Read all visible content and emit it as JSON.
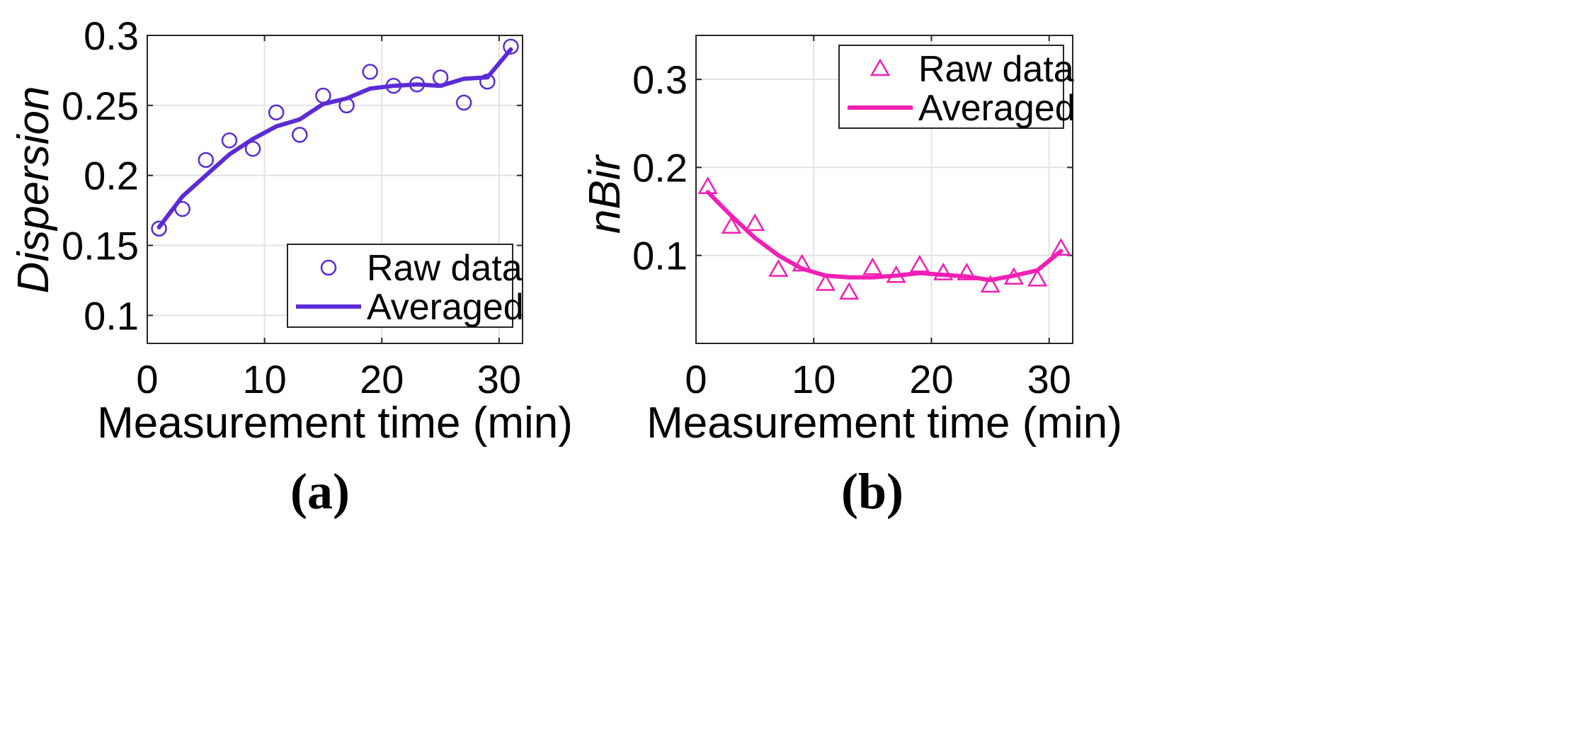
{
  "chart_data": [
    {
      "type": "line",
      "panel_label": "(a)",
      "xlabel": "Measurement time (min)",
      "ylabel": "Dispersion",
      "xlim": [
        0,
        32
      ],
      "ylim": [
        0.08,
        0.3
      ],
      "xticks": [
        0,
        10,
        20,
        30
      ],
      "xtick_labels": [
        "0",
        "10",
        "20",
        "30"
      ],
      "yticks": [
        0.1,
        0.15,
        0.2,
        0.25,
        0.3
      ],
      "ytick_labels": [
        "0.1",
        "0.15",
        "0.2",
        "0.25",
        "0.3"
      ],
      "grid": true,
      "legend": {
        "placement": "bottom-right",
        "entries": [
          "Raw data",
          "Averaged"
        ]
      },
      "color": "#5b2bd6",
      "marker": "circle",
      "series": [
        {
          "name": "Raw data",
          "x": [
            1,
            3,
            5,
            7,
            9,
            11,
            13,
            15,
            17,
            19,
            21,
            23,
            25,
            27,
            29,
            31
          ],
          "values": [
            0.162,
            0.176,
            0.211,
            0.225,
            0.219,
            0.245,
            0.229,
            0.257,
            0.25,
            0.274,
            0.264,
            0.265,
            0.27,
            0.252,
            0.267,
            0.292
          ]
        },
        {
          "name": "Averaged",
          "x": [
            1,
            3,
            5,
            7,
            9,
            11,
            13,
            15,
            17,
            19,
            21,
            23,
            25,
            27,
            29,
            31
          ],
          "values": [
            0.163,
            0.185,
            0.2,
            0.215,
            0.226,
            0.235,
            0.24,
            0.251,
            0.255,
            0.262,
            0.264,
            0.265,
            0.264,
            0.269,
            0.27,
            0.29
          ]
        }
      ]
    },
    {
      "type": "line",
      "panel_label": "(b)",
      "xlabel": "Measurement time (min)",
      "ylabel": "nBir",
      "xlim": [
        0,
        32
      ],
      "ylim": [
        0,
        0.35
      ],
      "xticks": [
        0,
        10,
        20,
        30
      ],
      "xtick_labels": [
        "0",
        "10",
        "20",
        "30"
      ],
      "yticks": [
        0.1,
        0.2,
        0.3
      ],
      "ytick_labels": [
        "0.1",
        "0.2",
        "0.3"
      ],
      "grid": true,
      "legend": {
        "placement": "top-right",
        "entries": [
          "Raw data",
          "Averaged"
        ]
      },
      "color": "#f21fb4",
      "marker": "triangle",
      "series": [
        {
          "name": "Raw data",
          "x": [
            1,
            3,
            5,
            7,
            9,
            11,
            13,
            15,
            17,
            19,
            21,
            23,
            25,
            27,
            29,
            31
          ],
          "values": [
            0.178,
            0.133,
            0.136,
            0.084,
            0.09,
            0.068,
            0.058,
            0.086,
            0.077,
            0.089,
            0.08,
            0.08,
            0.066,
            0.075,
            0.073,
            0.108
          ]
        },
        {
          "name": "Averaged",
          "x": [
            1,
            3,
            5,
            7,
            9,
            11,
            13,
            15,
            17,
            19,
            21,
            23,
            25,
            27,
            29,
            31
          ],
          "values": [
            0.172,
            0.145,
            0.12,
            0.1,
            0.085,
            0.077,
            0.075,
            0.075,
            0.077,
            0.08,
            0.078,
            0.076,
            0.072,
            0.077,
            0.083,
            0.105
          ]
        }
      ]
    }
  ]
}
